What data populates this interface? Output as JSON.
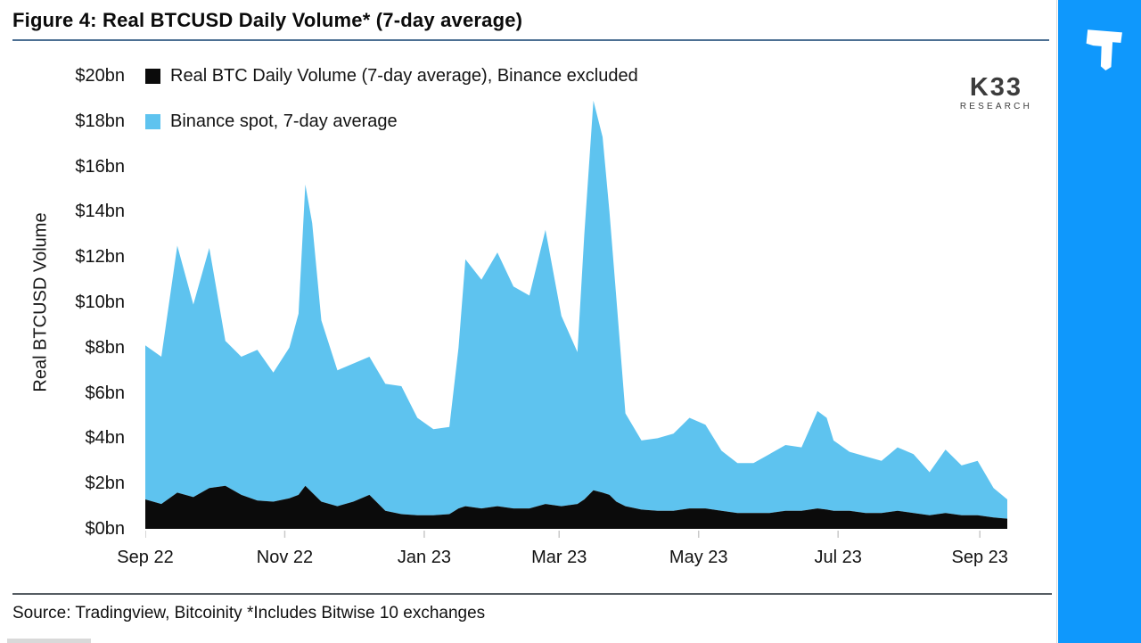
{
  "header": {
    "title": "Figure 4: Real BTCUSD Daily Volume* (7-day average)"
  },
  "footer": {
    "source": "Source: Tradingview, Bitcoinity *Includes Bitwise 10 exchanges"
  },
  "branding": {
    "k33": "K33",
    "k33_sub": "RESEARCH",
    "sidebar_logo_icon": "t-block-icon"
  },
  "colors": {
    "binance_spot": "#5EC3EF",
    "binance_excluded": "#0B0B0B",
    "sidebar_blue": "#0F98FC"
  },
  "chart_data": {
    "type": "area",
    "stacked": true,
    "title": "Figure 4: Real BTCUSD Daily Volume* (7-day average)",
    "xlabel": "",
    "ylabel": "Real BTCUSD Volume",
    "unit": "$bn",
    "ylim": [
      0,
      20
    ],
    "grid": false,
    "legend_position": "top-left",
    "y_ticks": [
      "$0bn",
      "$2bn",
      "$4bn",
      "$6bn",
      "$8bn",
      "$10bn",
      "$12bn",
      "$14bn",
      "$16bn",
      "$18bn",
      "$20bn"
    ],
    "x_ticks": [
      {
        "label": "Sep 22",
        "date": "2022-09-01"
      },
      {
        "label": "Nov 22",
        "date": "2022-11-01"
      },
      {
        "label": "Jan 23",
        "date": "2023-01-01"
      },
      {
        "label": "Mar 23",
        "date": "2023-03-01"
      },
      {
        "label": "May 23",
        "date": "2023-05-01"
      },
      {
        "label": "Jul 23",
        "date": "2023-07-01"
      },
      {
        "label": "Sep 23",
        "date": "2023-09-01"
      }
    ],
    "dates": [
      "2022-09-01",
      "2022-09-08",
      "2022-09-15",
      "2022-09-22",
      "2022-09-29",
      "2022-10-06",
      "2022-10-13",
      "2022-10-20",
      "2022-10-27",
      "2022-11-03",
      "2022-11-07",
      "2022-11-10",
      "2022-11-13",
      "2022-11-17",
      "2022-11-24",
      "2022-12-01",
      "2022-12-08",
      "2022-12-15",
      "2022-12-22",
      "2022-12-29",
      "2023-01-05",
      "2023-01-12",
      "2023-01-16",
      "2023-01-19",
      "2023-01-26",
      "2023-02-02",
      "2023-02-09",
      "2023-02-16",
      "2023-02-23",
      "2023-03-02",
      "2023-03-09",
      "2023-03-12",
      "2023-03-16",
      "2023-03-20",
      "2023-03-23",
      "2023-03-26",
      "2023-03-30",
      "2023-04-06",
      "2023-04-13",
      "2023-04-20",
      "2023-04-27",
      "2023-05-04",
      "2023-05-11",
      "2023-05-18",
      "2023-05-25",
      "2023-06-01",
      "2023-06-08",
      "2023-06-15",
      "2023-06-22",
      "2023-06-26",
      "2023-06-29",
      "2023-07-06",
      "2023-07-13",
      "2023-07-20",
      "2023-07-27",
      "2023-08-03",
      "2023-08-10",
      "2023-08-17",
      "2023-08-24",
      "2023-08-31",
      "2023-09-07",
      "2023-09-13"
    ],
    "series": [
      {
        "name": "Real BTC Daily Volume (7-day average), Binance excluded",
        "color": "#0B0B0B",
        "values": [
          1.3,
          1.1,
          1.6,
          1.4,
          1.8,
          1.9,
          1.5,
          1.25,
          1.2,
          1.35,
          1.5,
          1.9,
          1.6,
          1.2,
          1.0,
          1.2,
          1.5,
          0.8,
          0.65,
          0.6,
          0.6,
          0.65,
          0.9,
          1.0,
          0.9,
          1.0,
          0.9,
          0.9,
          1.1,
          1.0,
          1.1,
          1.3,
          1.7,
          1.6,
          1.5,
          1.2,
          1.0,
          0.85,
          0.8,
          0.8,
          0.9,
          0.9,
          0.8,
          0.7,
          0.7,
          0.7,
          0.8,
          0.8,
          0.9,
          0.85,
          0.8,
          0.8,
          0.7,
          0.7,
          0.8,
          0.7,
          0.6,
          0.7,
          0.6,
          0.6,
          0.5,
          0.45
        ]
      },
      {
        "name": "Binance spot, 7-day average",
        "color": "#5EC3EF",
        "values": [
          6.8,
          6.5,
          10.9,
          8.5,
          10.6,
          6.4,
          6.1,
          6.65,
          5.7,
          6.65,
          8.0,
          13.3,
          11.9,
          8.0,
          6.0,
          6.1,
          6.1,
          5.6,
          5.65,
          4.3,
          3.8,
          3.85,
          7.1,
          10.9,
          10.1,
          11.2,
          9.8,
          9.4,
          12.1,
          8.4,
          6.7,
          11.7,
          17.2,
          15.7,
          12.5,
          9.0,
          4.1,
          3.05,
          3.2,
          3.4,
          4.0,
          3.7,
          2.65,
          2.2,
          2.2,
          2.6,
          2.9,
          2.8,
          4.3,
          4.05,
          3.1,
          2.6,
          2.5,
          2.3,
          2.8,
          2.6,
          1.9,
          2.8,
          2.2,
          2.4,
          1.3,
          0.85
        ]
      }
    ]
  }
}
